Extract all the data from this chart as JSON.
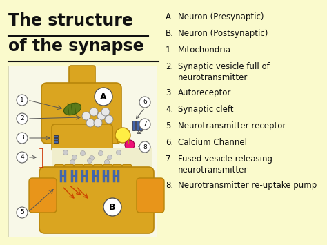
{
  "background_color": "#fafacc",
  "title_line1": "The structure",
  "title_line2": "of the synapse",
  "title_fontsize": 17,
  "title_color": "#111111",
  "legend_items": [
    {
      "label": "A.",
      "text": "Neuron (Presynaptic)"
    },
    {
      "label": "B.",
      "text": "Neuron (Postsynaptic)"
    },
    {
      "label": "1.",
      "text": "Mitochondria"
    },
    {
      "label": "2.",
      "text": "Synaptic vesicle full of\nneurotransmitter"
    },
    {
      "label": "3.",
      "text": "Autoreceptor"
    },
    {
      "label": "4.",
      "text": "Synaptic cleft"
    },
    {
      "label": "5.",
      "text": "Neurotransmitter receptor"
    },
    {
      "label": "6.",
      "text": "Calcium Channel"
    },
    {
      "label": "7.",
      "text": "Fused vesicle releasing\nneurotransmitter"
    },
    {
      "label": "8.",
      "text": "Neurotransmitter re-uptake pump"
    }
  ],
  "legend_fontsize": 8.5,
  "neuron_color": "#DAA520",
  "neuron_edge": "#B8860B",
  "white_bg": "#f5f5e8"
}
